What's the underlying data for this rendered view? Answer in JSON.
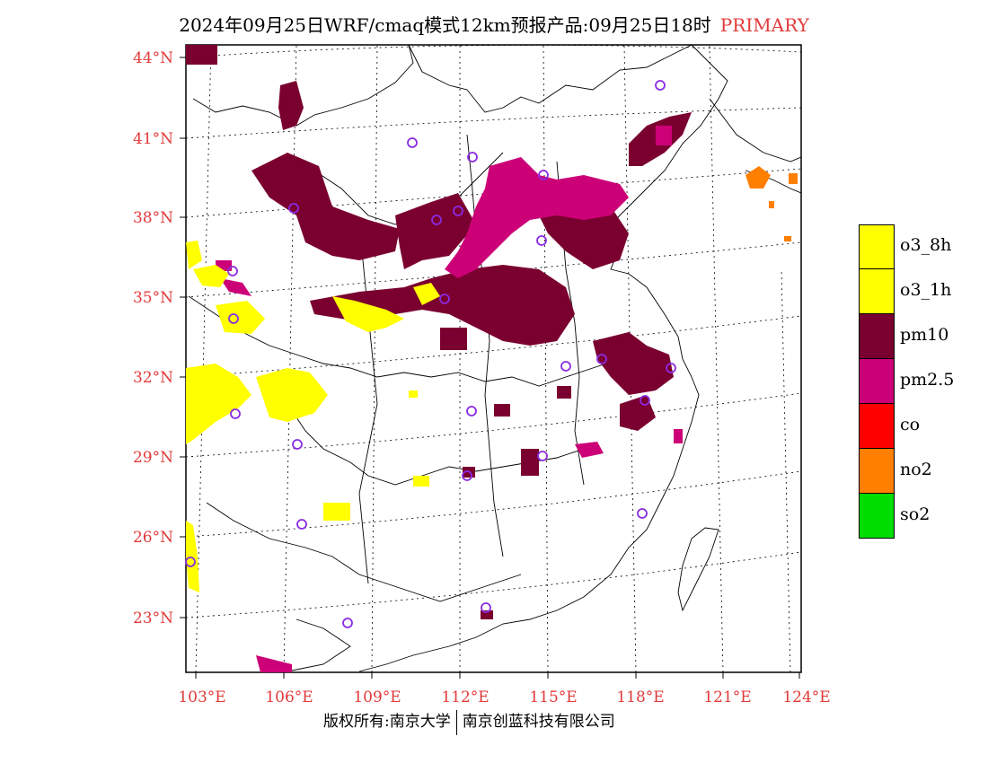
{
  "title": {
    "text": "2024年09月25日WRF/cmaq模式12km预报产品:09月25日18时",
    "tag": "PRIMARY"
  },
  "axes": {
    "lat_labels": [
      "44°N",
      "41°N",
      "38°N",
      "35°N",
      "32°N",
      "29°N",
      "26°N",
      "23°N"
    ],
    "lon_labels": [
      "103°E",
      "106°E",
      "109°E",
      "112°E",
      "115°E",
      "118°E",
      "121°E",
      "124°E"
    ]
  },
  "legend": {
    "items": [
      {
        "label": "o3_8h",
        "color": "#ffff00"
      },
      {
        "label": "o3_1h",
        "color": "#ffff00"
      },
      {
        "label": "pm10",
        "color": "#7a0030"
      },
      {
        "label": "pm2.5",
        "color": "#cc0077"
      },
      {
        "label": "co",
        "color": "#ff0000"
      },
      {
        "label": "no2",
        "color": "#ff7f00"
      },
      {
        "label": "so2",
        "color": "#00dd00"
      }
    ]
  },
  "colors": {
    "axis_label": "#e23a3a",
    "station_marker": "#8a2be2"
  },
  "footer": {
    "left": "版权所有:南京大学",
    "right": "南京创蓝科技有限公司"
  }
}
